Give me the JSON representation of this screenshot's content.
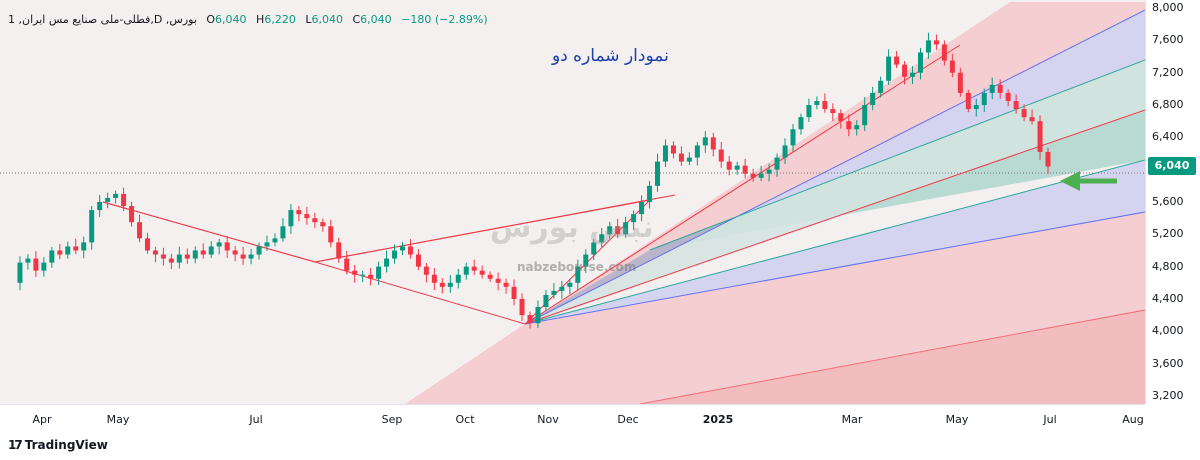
{
  "legend": {
    "symbol": "1 ,فطلی-ملی صنایع مس ایران,D ,بورس",
    "open_label": "O",
    "open": "6,040",
    "high_label": "H",
    "high": "6,220",
    "low_label": "L",
    "low": "6,040",
    "close_label": "C",
    "close": "6,040",
    "change": "−180 (−2.89%)"
  },
  "annotation": "نمودار شماره دو",
  "watermark": {
    "text_fa": "نبض بورس",
    "text_en": "nabzebourse.com"
  },
  "last_price": "6,040",
  "branding": {
    "logo_text": "TradingView",
    "logo_mark": "17"
  },
  "colors": {
    "up": "#089981",
    "down": "#f23645",
    "arrow": "#4caf50",
    "annotation": "#1e40af"
  },
  "chart_data": {
    "type": "candlestick",
    "ylim": [
      3100,
      8100
    ],
    "y_ticks": [
      "3,200",
      "3,600",
      "4,000",
      "4,400",
      "4,800",
      "5,200",
      "5,600",
      "6,000",
      "6,400",
      "6,800",
      "7,200",
      "7,600",
      "8,000"
    ],
    "x_ticks": [
      {
        "label": "Apr"
      },
      {
        "label": "May"
      },
      {
        "label": "Jul"
      },
      {
        "label": "Sep"
      },
      {
        "label": "Oct"
      },
      {
        "label": "Nov"
      },
      {
        "label": "Dec"
      },
      {
        "label": "2025",
        "bold": true
      },
      {
        "label": "Mar"
      },
      {
        "label": "May"
      },
      {
        "label": "Jul"
      },
      {
        "label": "Aug"
      }
    ],
    "close_series": [
      4600,
      4850,
      4900,
      4750,
      4850,
      5000,
      4950,
      5050,
      5000,
      5100,
      5500,
      5600,
      5650,
      5700,
      5550,
      5350,
      5150,
      5000,
      4950,
      4900,
      4850,
      4950,
      4900,
      5000,
      4950,
      5050,
      5100,
      5000,
      4950,
      4900,
      4950,
      5050,
      5100,
      5150,
      5300,
      5500,
      5450,
      5400,
      5350,
      5300,
      5100,
      4900,
      4750,
      4700,
      4700,
      4650,
      4800,
      4900,
      5000,
      5050,
      4950,
      4800,
      4700,
      4600,
      4550,
      4600,
      4700,
      4800,
      4750,
      4700,
      4650,
      4600,
      4550,
      4400,
      4200,
      4100,
      4300,
      4450,
      4500,
      4550,
      4600,
      4800,
      4950,
      5100,
      5200,
      5300,
      5200,
      5350,
      5450,
      5600,
      5800,
      6100,
      6300,
      6200,
      6100,
      6150,
      6300,
      6400,
      6250,
      6100,
      6000,
      6050,
      5950,
      5900,
      5950,
      6000,
      6150,
      6300,
      6500,
      6650,
      6800,
      6850,
      6750,
      6700,
      6600,
      6500,
      6550,
      6800,
      6950,
      7100,
      7400,
      7300,
      7150,
      7200,
      7450,
      7600,
      7550,
      7350,
      7200,
      6950,
      6750,
      6800,
      6950,
      7050,
      6950,
      6850,
      6750,
      6650,
      6600,
      6220,
      6040
    ]
  }
}
